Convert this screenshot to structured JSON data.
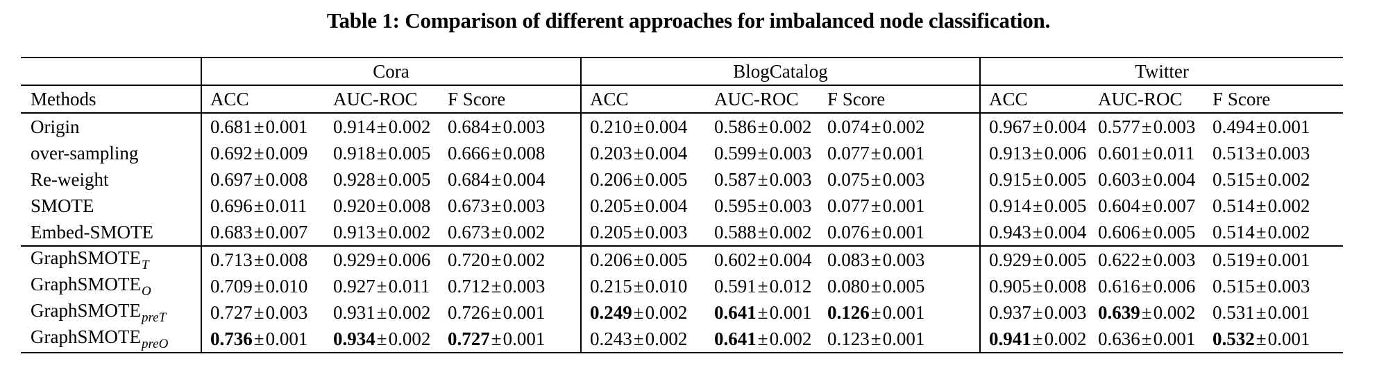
{
  "title": "Table 1: Comparison of different approaches for imbalanced node classification.",
  "table": {
    "plus_minus": "±",
    "methods_header": "Methods",
    "groups": [
      "Cora",
      "BlogCatalog",
      "Twitter"
    ],
    "sub_headers": [
      "ACC",
      "AUC-ROC",
      "F Score"
    ],
    "sections": [
      {
        "rows": [
          {
            "method": "Origin",
            "sub": "",
            "cells": [
              [
                "0.681",
                "0.001",
                0
              ],
              [
                "0.914",
                "0.002",
                0
              ],
              [
                "0.684",
                "0.003",
                0
              ],
              [
                "0.210",
                "0.004",
                0
              ],
              [
                "0.586",
                "0.002",
                0
              ],
              [
                "0.074",
                "0.002",
                0
              ],
              [
                "0.967",
                "0.004",
                0
              ],
              [
                "0.577",
                "0.003",
                0
              ],
              [
                "0.494",
                "0.001",
                0
              ]
            ]
          },
          {
            "method": "over-sampling",
            "sub": "",
            "cells": [
              [
                "0.692",
                "0.009",
                0
              ],
              [
                "0.918",
                "0.005",
                0
              ],
              [
                "0.666",
                "0.008",
                0
              ],
              [
                "0.203",
                "0.004",
                0
              ],
              [
                "0.599",
                "0.003",
                0
              ],
              [
                "0.077",
                "0.001",
                0
              ],
              [
                "0.913",
                "0.006",
                0
              ],
              [
                "0.601",
                "0.011",
                0
              ],
              [
                "0.513",
                "0.003",
                0
              ]
            ]
          },
          {
            "method": "Re-weight",
            "sub": "",
            "cells": [
              [
                "0.697",
                "0.008",
                0
              ],
              [
                "0.928",
                "0.005",
                0
              ],
              [
                "0.684",
                "0.004",
                0
              ],
              [
                "0.206",
                "0.005",
                0
              ],
              [
                "0.587",
                "0.003",
                0
              ],
              [
                "0.075",
                "0.003",
                0
              ],
              [
                "0.915",
                "0.005",
                0
              ],
              [
                "0.603",
                "0.004",
                0
              ],
              [
                "0.515",
                "0.002",
                0
              ]
            ]
          },
          {
            "method": "SMOTE",
            "sub": "",
            "cells": [
              [
                "0.696",
                "0.011",
                0
              ],
              [
                "0.920",
                "0.008",
                0
              ],
              [
                "0.673",
                "0.003",
                0
              ],
              [
                "0.205",
                "0.004",
                0
              ],
              [
                "0.595",
                "0.003",
                0
              ],
              [
                "0.077",
                "0.001",
                0
              ],
              [
                "0.914",
                "0.005",
                0
              ],
              [
                "0.604",
                "0.007",
                0
              ],
              [
                "0.514",
                "0.002",
                0
              ]
            ]
          },
          {
            "method": "Embed-SMOTE",
            "sub": "",
            "cells": [
              [
                "0.683",
                "0.007",
                0
              ],
              [
                "0.913",
                "0.002",
                0
              ],
              [
                "0.673",
                "0.002",
                0
              ],
              [
                "0.205",
                "0.003",
                0
              ],
              [
                "0.588",
                "0.002",
                0
              ],
              [
                "0.076",
                "0.001",
                0
              ],
              [
                "0.943",
                "0.004",
                0
              ],
              [
                "0.606",
                "0.005",
                0
              ],
              [
                "0.514",
                "0.002",
                0
              ]
            ]
          }
        ]
      },
      {
        "rows": [
          {
            "method": "GraphSMOTE",
            "sub": "T",
            "cells": [
              [
                "0.713",
                "0.008",
                0
              ],
              [
                "0.929",
                "0.006",
                0
              ],
              [
                "0.720",
                "0.002",
                0
              ],
              [
                "0.206",
                "0.005",
                0
              ],
              [
                "0.602",
                "0.004",
                0
              ],
              [
                "0.083",
                "0.003",
                0
              ],
              [
                "0.929",
                "0.005",
                0
              ],
              [
                "0.622",
                "0.003",
                0
              ],
              [
                "0.519",
                "0.001",
                0
              ]
            ]
          },
          {
            "method": "GraphSMOTE",
            "sub": "O",
            "cells": [
              [
                "0.709",
                "0.010",
                0
              ],
              [
                "0.927",
                "0.011",
                0
              ],
              [
                "0.712",
                "0.003",
                0
              ],
              [
                "0.215",
                "0.010",
                0
              ],
              [
                "0.591",
                "0.012",
                0
              ],
              [
                "0.080",
                "0.005",
                0
              ],
              [
                "0.905",
                "0.008",
                0
              ],
              [
                "0.616",
                "0.006",
                0
              ],
              [
                "0.515",
                "0.003",
                0
              ]
            ]
          },
          {
            "method": "GraphSMOTE",
            "sub": "preT",
            "cells": [
              [
                "0.727",
                "0.003",
                0
              ],
              [
                "0.931",
                "0.002",
                0
              ],
              [
                "0.726",
                "0.001",
                0
              ],
              [
                "0.249",
                "0.002",
                1
              ],
              [
                "0.641",
                "0.001",
                1
              ],
              [
                "0.126",
                "0.001",
                1
              ],
              [
                "0.937",
                "0.003",
                0
              ],
              [
                "0.639",
                "0.002",
                1
              ],
              [
                "0.531",
                "0.001",
                0
              ]
            ]
          },
          {
            "method": "GraphSMOTE",
            "sub": "preO",
            "cells": [
              [
                "0.736",
                "0.001",
                1
              ],
              [
                "0.934",
                "0.002",
                1
              ],
              [
                "0.727",
                "0.001",
                1
              ],
              [
                "0.243",
                "0.002",
                0
              ],
              [
                "0.641",
                "0.002",
                1
              ],
              [
                "0.123",
                "0.001",
                0
              ],
              [
                "0.941",
                "0.002",
                1
              ],
              [
                "0.636",
                "0.001",
                0
              ],
              [
                "0.532",
                "0.001",
                1
              ]
            ]
          }
        ]
      }
    ]
  },
  "chart_data": {
    "type": "table",
    "title": "Table 1: Comparison of different approaches for imbalanced node classification.",
    "column_groups": [
      "Cora",
      "BlogCatalog",
      "Twitter"
    ],
    "metrics": [
      "ACC",
      "AUC-ROC",
      "F Score"
    ],
    "row_labels": [
      "Origin",
      "over-sampling",
      "Re-weight",
      "SMOTE",
      "Embed-SMOTE",
      "GraphSMOTE_T",
      "GraphSMOTE_O",
      "GraphSMOTE_preT",
      "GraphSMOTE_preO"
    ]
  }
}
